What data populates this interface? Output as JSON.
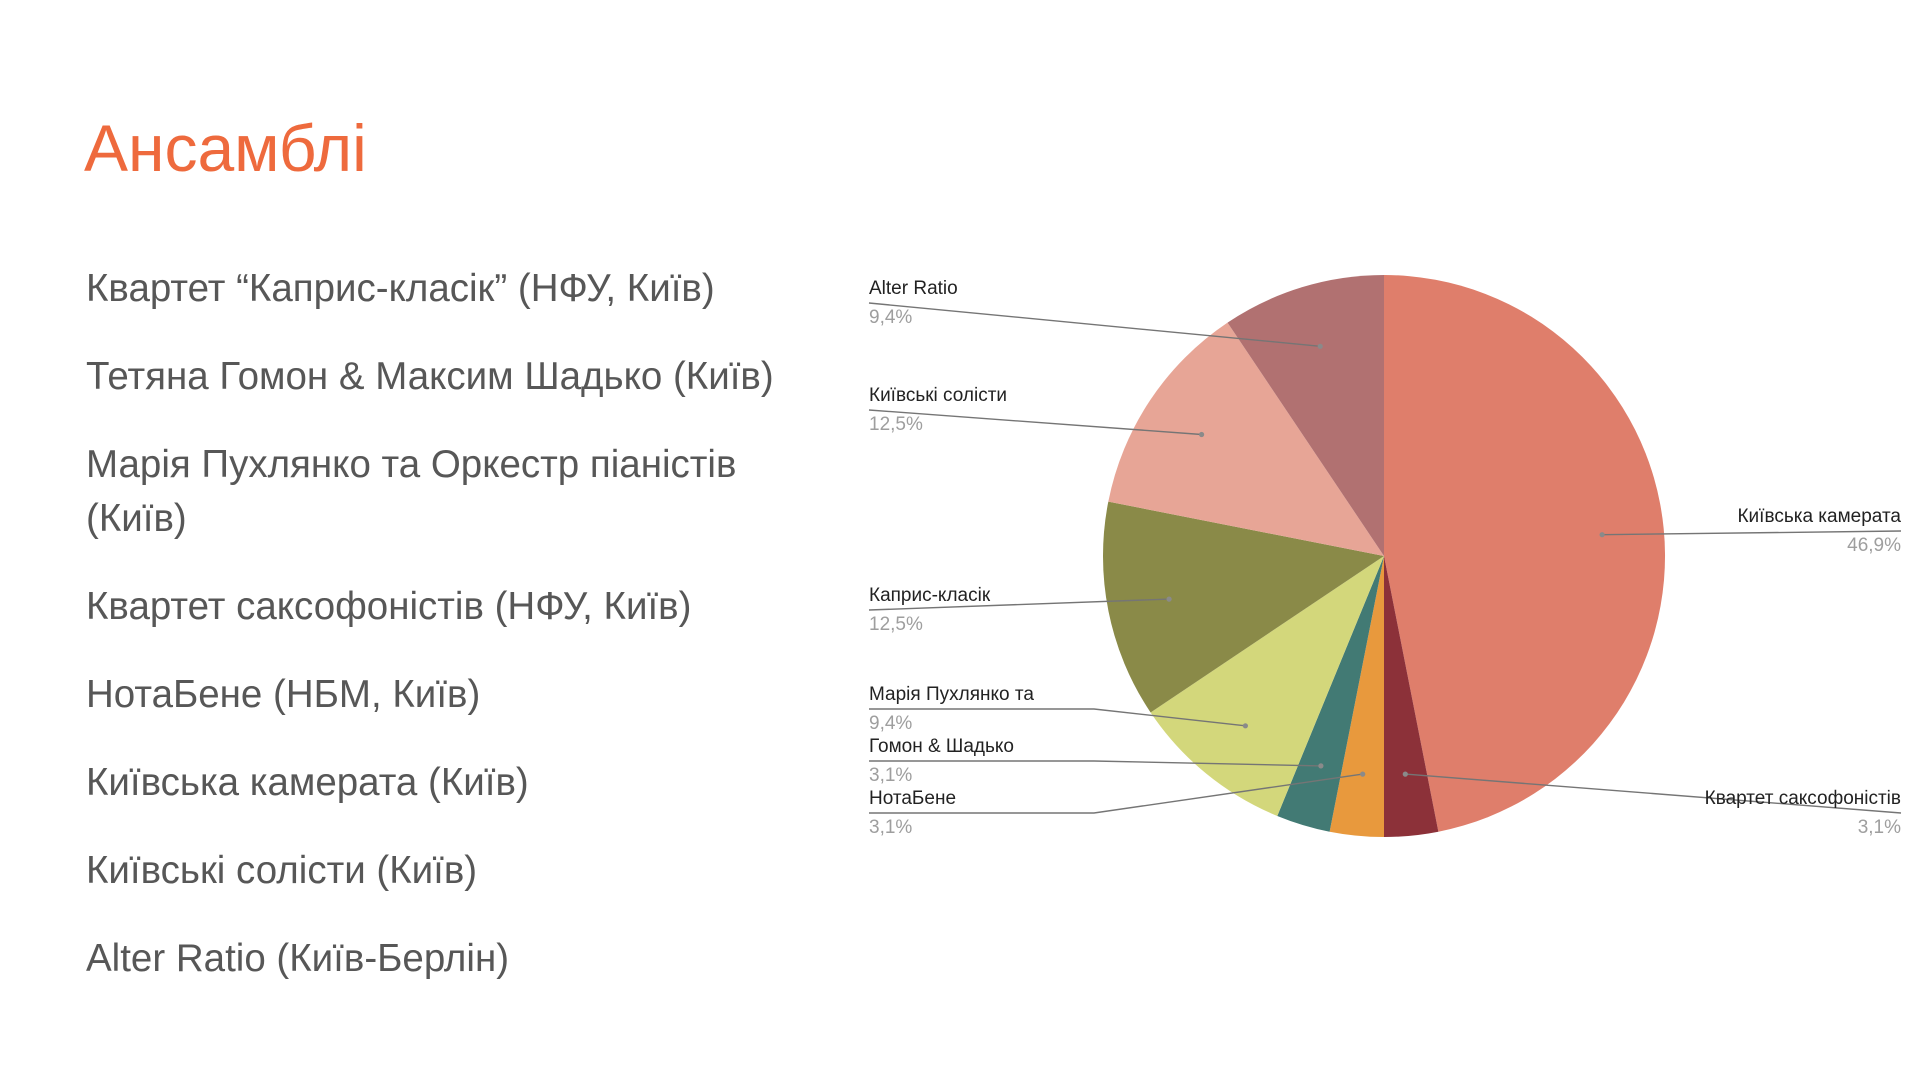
{
  "title": "Ансамблі",
  "ensembles": [
    "Квартет “Каприс-класік” (НФУ, Київ)",
    "Тетяна Гомон & Максим Шадько (Київ)",
    "Марія Пухлянко та Оркестр піаністів (Київ)",
    "Квартет саксофоністів (НФУ, Київ)",
    "НотаБене (НБМ, Київ)",
    "Київська камерата (Київ)",
    "Київські солісти (Київ)",
    "Alter Ratio (Київ-Берлін)"
  ],
  "chart_data": {
    "type": "pie",
    "slices": [
      {
        "label": "Київська камерата",
        "value": 46.9,
        "value_label": "46,9%",
        "color": "#df7e6b"
      },
      {
        "label": "Квартет саксофоністів",
        "value": 3.1,
        "value_label": "3,1%",
        "color": "#8c3139"
      },
      {
        "label": "НотаБене",
        "value": 3.1,
        "value_label": "3,1%",
        "color": "#e8993d"
      },
      {
        "label": "Гомон & Шадько",
        "value": 3.1,
        "value_label": "3,1%",
        "color": "#427a74"
      },
      {
        "label": "Марія Пухлянко та",
        "value": 9.4,
        "value_label": "9,4%",
        "color": "#d3d77b"
      },
      {
        "label": "Каприс-класік",
        "value": 12.5,
        "value_label": "12,5%",
        "color": "#8a8a48"
      },
      {
        "label": "Київські солісти",
        "value": 12.5,
        "value_label": "12,5%",
        "color": "#e7a596"
      },
      {
        "label": "Alter Ratio",
        "value": 9.4,
        "value_label": "9,4%",
        "color": "#b17171"
      }
    ]
  }
}
